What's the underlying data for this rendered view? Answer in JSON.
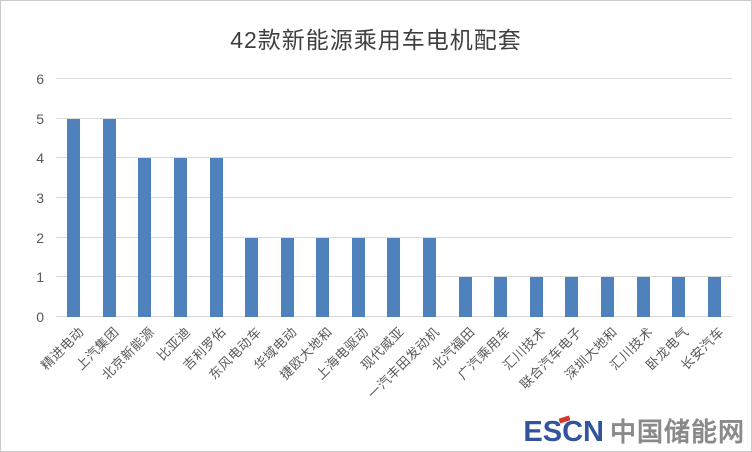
{
  "title": "42款新能源乘用车电机配套",
  "chart_data": {
    "type": "bar",
    "title": "42款新能源乘用车电机配套",
    "categories": [
      "精进电动",
      "上汽集团",
      "北京新能源",
      "比亚迪",
      "吉利罗佑",
      "东风电动车",
      "华域电动",
      "捷欧大地和",
      "上海电驱动",
      "现代威亚",
      "一汽丰田发动机",
      "北汽福田",
      "广汽乘用车",
      "汇川技术",
      "联合汽车电子",
      "深圳大地和",
      "汇川技术",
      "卧龙电气",
      "长安汽车"
    ],
    "values": [
      5,
      5,
      4,
      4,
      4,
      2,
      2,
      2,
      2,
      2,
      2,
      1,
      1,
      1,
      1,
      1,
      1,
      1,
      1
    ],
    "xlabel": "",
    "ylabel": "",
    "ylim": [
      0,
      6
    ],
    "yticks": [
      0,
      1,
      2,
      3,
      4,
      5,
      6
    ],
    "grid": true,
    "legend": false,
    "bar_color": "#4f81bd"
  },
  "watermark": {
    "logo_text": "ESCN",
    "logo_suffix": "中国储能网",
    "logo_color": "#32549e",
    "suffix_color": "#8a8a8a",
    "accent_color": "#d6382c"
  }
}
